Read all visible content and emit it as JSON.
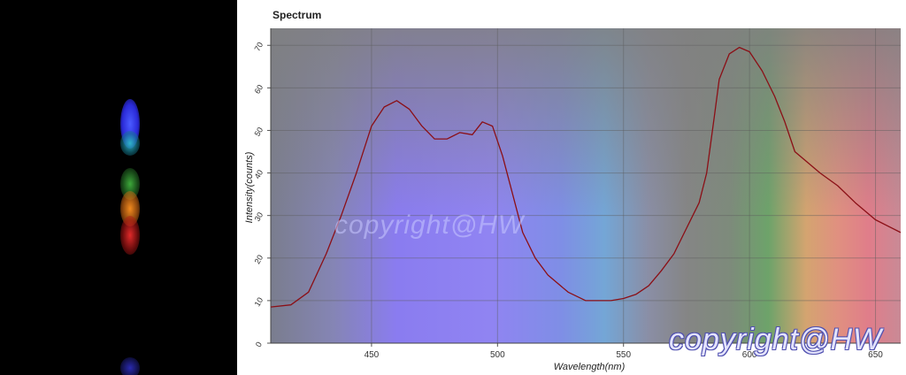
{
  "chart_data": {
    "type": "line",
    "title": "Spectrum",
    "xlabel": "Wavelength(nm)",
    "ylabel": "Intensity(counts)",
    "xlim": [
      410,
      660
    ],
    "ylim": [
      0,
      74
    ],
    "xticks": [
      450,
      500,
      550,
      600,
      650
    ],
    "yticks": [
      0,
      10,
      20,
      30,
      40,
      50,
      60,
      70
    ],
    "grid": true,
    "background": "visible-spectrum rainbow over gray",
    "line_color": "#8b0f16",
    "series": [
      {
        "x": [
          410,
          418,
          425,
          432,
          438,
          444,
          450,
          455,
          460,
          465,
          470,
          475,
          480,
          485,
          490,
          494,
          498,
          502,
          506,
          510,
          515,
          520,
          528,
          535,
          540,
          545,
          550,
          555,
          560,
          565,
          570,
          575,
          580,
          583,
          586,
          588,
          592,
          596,
          600,
          605,
          610,
          614,
          618,
          622,
          628,
          635,
          642,
          650,
          660
        ],
        "y": [
          8.5,
          9,
          12,
          21,
          30,
          40,
          51,
          55.5,
          57,
          55,
          51,
          48,
          48,
          49.5,
          49,
          52,
          51,
          44,
          35,
          26,
          20,
          16,
          12,
          10,
          10,
          10,
          10.5,
          11.5,
          13.5,
          17,
          21,
          27,
          33,
          40,
          53,
          62,
          68,
          69.5,
          68.5,
          64,
          58,
          52,
          45,
          43,
          40,
          37,
          33,
          29,
          26
        ]
      }
    ],
    "annotations": [
      "copyright@HW",
      "copyright@HW"
    ]
  }
}
